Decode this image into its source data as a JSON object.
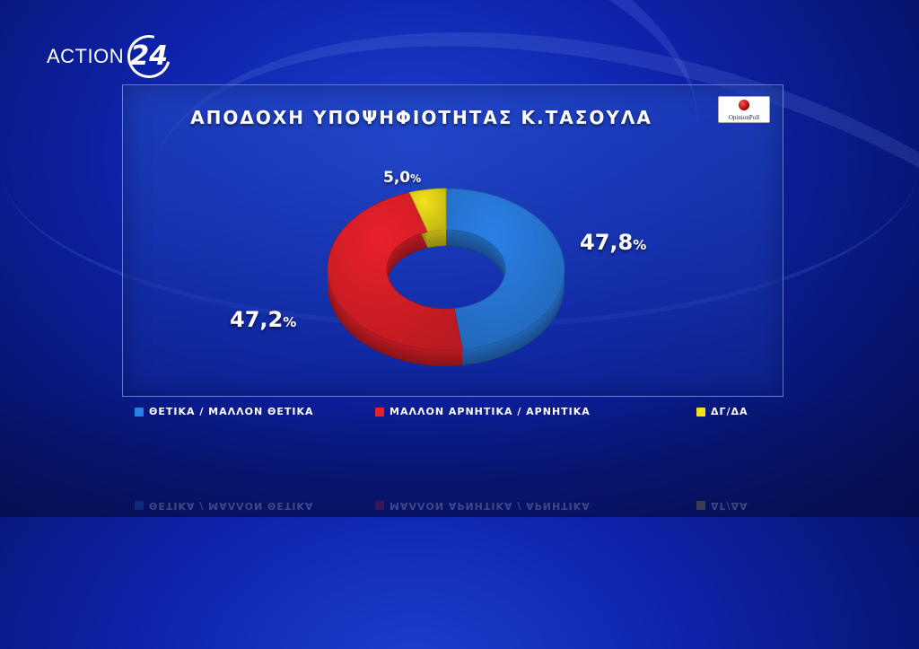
{
  "brand": {
    "name": "ACTION",
    "number": "24"
  },
  "source_badge": "OpinionPoll",
  "chart_data": {
    "type": "pie",
    "donut": true,
    "title": "ΑΠΟΔΟΧΗ ΥΠΟΨΗΦΙΟΤΗΤΑΣ Κ.ΤΑΣΟΥΛΑ",
    "slices": [
      {
        "label": "ΘΕΤΙΚΑ / ΜΑΛΛΟΝ ΘΕΤΙΚΑ",
        "value": 47.8,
        "display": "47,8",
        "color": "#2a7fe6"
      },
      {
        "label": "ΜΑΛΛΟΝ ΑΡΝΗΤΙΚΑ / ΑΡΝΗΤΙΚΑ",
        "value": 47.2,
        "display": "47,2",
        "color": "#e8202a"
      },
      {
        "label": "ΔΓ/ΔΑ",
        "value": 5.0,
        "display": "5,0",
        "color": "#f2e21a"
      }
    ],
    "unit": "%",
    "legend_placement": "bottom"
  }
}
